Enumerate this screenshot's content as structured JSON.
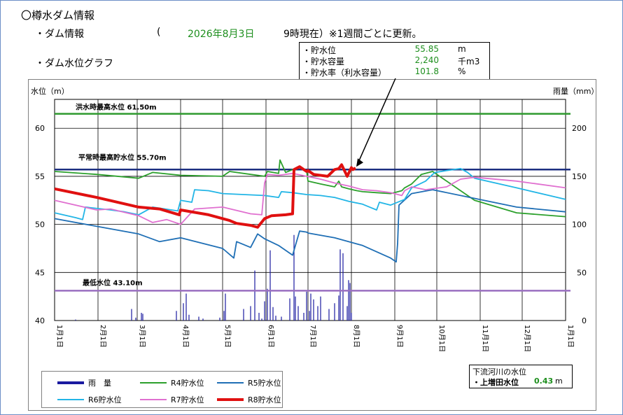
{
  "header": {
    "title": "〇樽水ダム情報",
    "dam_info_label": "・ダム情報",
    "paren_open": "(",
    "date": "2026年8月3日",
    "time_note": "9時現在）※1週間ごとに更新。",
    "graph_label": "・ダム水位グラフ"
  },
  "info_box": {
    "rows": [
      {
        "label": "・貯水位",
        "value": "55.85",
        "unit": "m"
      },
      {
        "label": "・貯水容量",
        "value": "2,240",
        "unit": "千m3"
      },
      {
        "label": "・貯水率（利水容量）",
        "value": "101.8",
        "unit": "%"
      }
    ]
  },
  "downstream": {
    "title": "下流河川の水位",
    "label": "・上増田水位",
    "value": "0.43",
    "unit": "m"
  },
  "colors": {
    "rain": "#1a1aa0",
    "R4": "#2ca02c",
    "R5": "#1f6fb5",
    "R6": "#22b5e6",
    "R7": "#e070d0",
    "R8": "#e01010",
    "flood_line": "#2e9a2e",
    "normal_line": "#1c2f80",
    "min_line": "#9a6fc0"
  },
  "chart_data": {
    "type": "line",
    "ylabel_left": "水位（m）",
    "ylabel_right": "雨量（mm）",
    "ylim_left": [
      40,
      63
    ],
    "yticks_left": [
      "40",
      "45",
      "50",
      "55",
      "60"
    ],
    "ylim_right": [
      0,
      230
    ],
    "yticks_right": [
      "0",
      "50",
      "100",
      "150",
      "200"
    ],
    "x_ticks": [
      "1月1日",
      "2月1日",
      "3月1日",
      "4月1日",
      "5月1日",
      "6月1日",
      "7月1日",
      "8月1日",
      "9月1日",
      "10月1日",
      "11月1日",
      "12月1日",
      "1月1日"
    ],
    "x_tick_doys": [
      0,
      31,
      59,
      90,
      120,
      151,
      181,
      212,
      243,
      273,
      304,
      334,
      365
    ],
    "grid": true,
    "reference_lines": [
      {
        "label": "洪水時最高水位 61.50m",
        "value": 61.5,
        "color": "#2e9a2e"
      },
      {
        "label": "平常時最高貯水位 55.70m",
        "value": 55.7,
        "color": "#1c2f80"
      },
      {
        "label": "最低水位 43.10m",
        "value": 43.1,
        "color": "#9a6fc0"
      }
    ],
    "legend_items": [
      {
        "key": "rain",
        "name": "雨　量"
      },
      {
        "key": "R4",
        "name": "R4貯水位"
      },
      {
        "key": "R5",
        "name": "R5貯水位"
      },
      {
        "key": "R6",
        "name": "R6貯水位"
      },
      {
        "key": "R7",
        "name": "R7貯水位"
      },
      {
        "key": "R8",
        "name": "R8貯水位"
      }
    ],
    "series": [
      {
        "key": "R4",
        "name": "R4貯水位",
        "x": [
          0,
          30,
          60,
          70,
          90,
          120,
          125,
          140,
          150,
          152,
          160,
          161,
          165,
          170,
          175,
          180,
          181,
          190,
          200,
          203,
          205,
          210,
          216,
          220,
          230,
          240,
          248,
          250,
          255,
          262,
          270,
          300,
          330,
          365
        ],
        "y": [
          55.5,
          55.2,
          54.8,
          55.4,
          55.1,
          55.0,
          55.5,
          55.2,
          55.0,
          55.5,
          55.3,
          56.7,
          55.4,
          55.7,
          55.9,
          55.6,
          54.5,
          54.2,
          53.9,
          54.5,
          53.9,
          53.7,
          53.5,
          53.4,
          53.3,
          53.2,
          53.5,
          53.8,
          54.2,
          55.2,
          55.5,
          52.5,
          51.2,
          50.8
        ]
      },
      {
        "key": "R5",
        "name": "R5貯水位",
        "x": [
          0,
          30,
          60,
          75,
          90,
          120,
          128,
          130,
          140,
          145,
          150,
          160,
          170,
          175,
          180,
          181,
          200,
          220,
          240,
          244,
          245,
          246,
          255,
          270,
          300,
          330,
          365
        ],
        "y": [
          50.6,
          49.8,
          49.0,
          48.2,
          48.6,
          47.5,
          46.5,
          48.2,
          47.6,
          49.0,
          48.5,
          47.8,
          46.8,
          49.3,
          49.2,
          49.1,
          48.6,
          47.8,
          46.5,
          46.1,
          48.0,
          52.0,
          53.2,
          53.6,
          52.7,
          51.8,
          51.3
        ]
      },
      {
        "key": "R6",
        "name": "R6貯水位",
        "x": [
          0,
          15,
          20,
          22,
          40,
          50,
          60,
          70,
          88,
          90,
          98,
          100,
          110,
          120,
          150,
          160,
          162,
          170,
          180,
          190,
          200,
          210,
          220,
          225,
          230,
          232,
          240,
          250,
          255,
          265,
          270,
          272,
          280,
          290,
          295,
          300,
          330,
          365
        ],
        "y": [
          51.2,
          50.7,
          50.5,
          51.8,
          51.5,
          51.3,
          51.0,
          51.8,
          51.4,
          52.5,
          52.3,
          53.6,
          53.5,
          53.2,
          53.0,
          52.8,
          53.4,
          53.3,
          53.1,
          53.0,
          52.8,
          52.4,
          52.1,
          51.8,
          51.5,
          52.3,
          52.0,
          52.6,
          53.8,
          54.5,
          55.2,
          55.4,
          55.6,
          55.8,
          55.4,
          54.8,
          53.8,
          52.6
        ]
      },
      {
        "key": "R7",
        "name": "R7貯水位",
        "x": [
          0,
          30,
          40,
          60,
          70,
          80,
          90,
          100,
          120,
          140,
          148,
          150,
          152,
          160,
          170,
          180,
          190,
          200,
          210,
          220,
          230,
          240,
          248,
          250,
          255,
          265,
          280,
          290,
          300,
          330,
          365
        ],
        "y": [
          52.5,
          51.5,
          51.6,
          50.9,
          50.2,
          50.5,
          50.0,
          51.6,
          51.8,
          51.1,
          51.0,
          54.3,
          55.2,
          55.1,
          55.3,
          55.0,
          54.7,
          54.3,
          54.0,
          53.6,
          53.5,
          53.3,
          53.0,
          53.5,
          53.9,
          53.6,
          53.9,
          54.7,
          54.9,
          54.5,
          53.8
        ]
      },
      {
        "key": "R8",
        "name": "R8貯水位",
        "x": [
          0,
          30,
          60,
          75,
          89,
          90,
          110,
          125,
          130,
          140,
          145,
          150,
          155,
          165,
          170,
          171,
          175,
          180,
          181,
          185,
          195,
          200,
          203,
          205,
          209,
          212,
          213,
          215
        ],
        "y": [
          53.7,
          52.8,
          51.8,
          51.6,
          51.0,
          51.5,
          51.0,
          50.4,
          50.1,
          49.9,
          49.7,
          50.6,
          50.9,
          51.0,
          51.1,
          55.7,
          56.0,
          55.5,
          55.6,
          55.2,
          55.0,
          55.7,
          55.8,
          56.2,
          55.0,
          55.9,
          55.7,
          55.85
        ]
      }
    ],
    "rain_daily": [
      {
        "x": 15,
        "y": 1
      },
      {
        "x": 55,
        "y": 12
      },
      {
        "x": 58,
        "y": 3
      },
      {
        "x": 62,
        "y": 8
      },
      {
        "x": 63,
        "y": 7
      },
      {
        "x": 87,
        "y": 10
      },
      {
        "x": 92,
        "y": 18
      },
      {
        "x": 94,
        "y": 28
      },
      {
        "x": 96,
        "y": 6
      },
      {
        "x": 103,
        "y": 4
      },
      {
        "x": 106,
        "y": 2
      },
      {
        "x": 118,
        "y": 3
      },
      {
        "x": 121,
        "y": 10
      },
      {
        "x": 122,
        "y": 28
      },
      {
        "x": 135,
        "y": 12
      },
      {
        "x": 140,
        "y": 15
      },
      {
        "x": 143,
        "y": 52
      },
      {
        "x": 146,
        "y": 8
      },
      {
        "x": 148,
        "y": 2
      },
      {
        "x": 150,
        "y": 20
      },
      {
        "x": 152,
        "y": 33
      },
      {
        "x": 154,
        "y": 73
      },
      {
        "x": 156,
        "y": 14
      },
      {
        "x": 158,
        "y": 5
      },
      {
        "x": 162,
        "y": 4
      },
      {
        "x": 168,
        "y": 23
      },
      {
        "x": 171,
        "y": 89
      },
      {
        "x": 172,
        "y": 25
      },
      {
        "x": 174,
        "y": 15
      },
      {
        "x": 178,
        "y": 8
      },
      {
        "x": 180,
        "y": 30
      },
      {
        "x": 182,
        "y": 10
      },
      {
        "x": 183,
        "y": 28
      },
      {
        "x": 185,
        "y": 22
      },
      {
        "x": 188,
        "y": 15
      },
      {
        "x": 190,
        "y": 25
      },
      {
        "x": 196,
        "y": 12
      },
      {
        "x": 200,
        "y": 18
      },
      {
        "x": 203,
        "y": 26
      },
      {
        "x": 204,
        "y": 74
      },
      {
        "x": 206,
        "y": 70
      },
      {
        "x": 209,
        "y": 15
      },
      {
        "x": 210,
        "y": 42
      },
      {
        "x": 211,
        "y": 39
      },
      {
        "x": 212,
        "y": 8
      }
    ]
  }
}
